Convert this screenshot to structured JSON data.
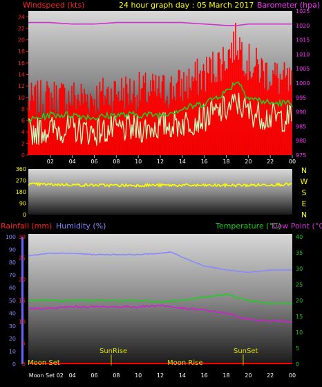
{
  "header": {
    "title": "24 hour graph day : 05 March 2017",
    "left_label": "Windspeed (kts)",
    "right_label": "Barometer (hpa)"
  },
  "bottom_header": {
    "rain_label": "Rainfall (mm)",
    "humidity_label": "Humidity (%)",
    "temp_label": "Temperature (°C)",
    "dew_label": "Dew Point (°C)"
  },
  "events": {
    "moon_set": "Moon Set",
    "sunrise": "SunRise",
    "moon_rise": "Moon Rise",
    "sunset": "SunSet"
  },
  "time_ticks": [
    "02",
    "04",
    "06",
    "08",
    "10",
    "12",
    "14",
    "16",
    "18",
    "20",
    "22",
    "00"
  ],
  "bottom_time_ticks": [
    "Moon Set 02",
    "04",
    "06",
    "08",
    "10",
    "12",
    "14",
    "16",
    "18",
    "20",
    "22",
    "00"
  ],
  "compass": [
    "N",
    "W",
    "S",
    "E",
    "N"
  ],
  "colors": {
    "gust": "#ff0000",
    "avg": "#22cc22",
    "speed": "#c0ffc0",
    "baro": "#cc33cc",
    "dir": "#ffff00",
    "humidity": "#8888ff",
    "temp": "#22cc22",
    "dew": "#cc22cc",
    "rain": "#ff0000"
  },
  "chart_data": [
    {
      "type": "line",
      "name": "wind",
      "x_labels": [
        "02",
        "04",
        "06",
        "08",
        "10",
        "12",
        "14",
        "16",
        "18",
        "20",
        "22",
        "00"
      ],
      "left_axis": {
        "label": "Windspeed (kts)",
        "ticks": [
          0,
          2,
          4,
          6,
          8,
          10,
          12,
          14,
          16,
          18,
          20,
          22,
          24
        ],
        "ylim": [
          0,
          25
        ]
      },
      "right_axis": {
        "label": "Barometer (hpa)",
        "ticks": [
          975,
          980,
          985,
          990,
          995,
          1000,
          1005,
          1010,
          1015,
          1020,
          1025
        ],
        "ylim": [
          975,
          1025
        ]
      },
      "hours": [
        0,
        2,
        4,
        6,
        8,
        10,
        12,
        14,
        16,
        18,
        19,
        20,
        22,
        24
      ],
      "series": [
        {
          "name": "Gust",
          "axis": "left",
          "values": [
            9,
            10,
            10,
            10,
            11,
            11,
            11,
            12,
            14,
            17,
            20,
            16,
            14,
            12
          ]
        },
        {
          "name": "Average",
          "axis": "left",
          "values": [
            6,
            7,
            7,
            6.5,
            7,
            7,
            7,
            8,
            9,
            11,
            13,
            10,
            9,
            9
          ]
        },
        {
          "name": "Speed",
          "axis": "left",
          "values": [
            4,
            4.5,
            4.5,
            4,
            4.5,
            4.5,
            5,
            5.5,
            6.5,
            8,
            9,
            7.5,
            6.5,
            6.5
          ]
        },
        {
          "name": "Barometer",
          "axis": "right",
          "values": [
            1021,
            1021,
            1020.5,
            1020.5,
            1021,
            1021,
            1021,
            1021,
            1020.5,
            1020,
            1020,
            1020.5,
            1020.5,
            1020.5
          ]
        }
      ]
    },
    {
      "type": "line",
      "name": "wind_direction",
      "y_ticks": [
        0,
        90,
        180,
        270,
        360
      ],
      "ylim": [
        0,
        360
      ],
      "hours": [
        0,
        4,
        8,
        12,
        16,
        20,
        24
      ],
      "series": [
        {
          "name": "Direction",
          "values": [
            240,
            235,
            230,
            232,
            230,
            232,
            240
          ]
        }
      ]
    },
    {
      "type": "line",
      "name": "temp_humidity",
      "left_axis": {
        "label": "Humidity (%)",
        "ticks": [
          0,
          10,
          20,
          30,
          40,
          50,
          60,
          70,
          80,
          90,
          100
        ],
        "ylim": [
          0,
          100
        ]
      },
      "rain_axis": {
        "label": "Rainfall (mm)",
        "ticks": [
          0,
          5,
          10,
          15,
          20,
          25,
          30
        ],
        "ylim": [
          0,
          30
        ]
      },
      "right_axis": {
        "label": "Temperature (°C)",
        "ticks": [
          0,
          5,
          10,
          15,
          20,
          25,
          30,
          35,
          40
        ],
        "ylim": [
          0,
          40
        ]
      },
      "hours": [
        0,
        2,
        4,
        6,
        8,
        10,
        12,
        13,
        14,
        16,
        18,
        20,
        22,
        24
      ],
      "series": [
        {
          "name": "Humidity",
          "axis": "left",
          "values": [
            85,
            87,
            87,
            86,
            86,
            86,
            87,
            88,
            84,
            77,
            74,
            72,
            74,
            74
          ]
        },
        {
          "name": "Temperature",
          "axis": "right",
          "values": [
            20,
            20,
            20,
            20,
            20,
            20,
            19.5,
            20,
            20,
            21,
            22,
            20,
            19,
            19
          ]
        },
        {
          "name": "Dew Point",
          "axis": "right",
          "values": [
            17.5,
            17.5,
            18,
            18,
            18,
            18,
            18.5,
            18,
            17.5,
            17,
            16,
            14,
            13.5,
            13.5
          ]
        },
        {
          "name": "Rainfall",
          "axis": "rain",
          "values": [
            0,
            0,
            0,
            0,
            0,
            0,
            0,
            0,
            0,
            0,
            0,
            0,
            0,
            0
          ]
        }
      ]
    }
  ]
}
